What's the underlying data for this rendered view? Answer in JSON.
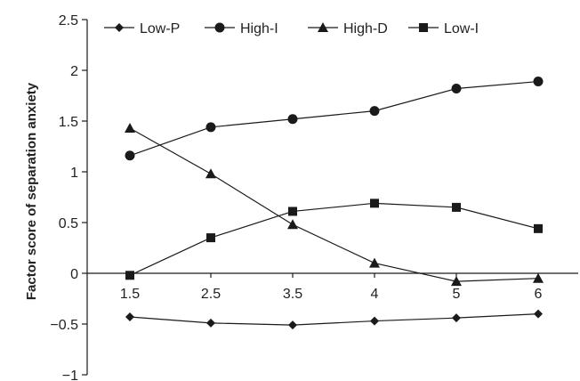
{
  "chart_data": {
    "type": "line",
    "categories": [
      "1.5",
      "2.5",
      "3.5",
      "4",
      "5",
      "6"
    ],
    "series": [
      {
        "name": "Low-P",
        "marker": "diamond",
        "values": [
          -0.43,
          -0.49,
          -0.51,
          -0.47,
          -0.44,
          -0.4
        ]
      },
      {
        "name": "High-I",
        "marker": "circle",
        "values": [
          1.16,
          1.44,
          1.52,
          1.6,
          1.82,
          1.89
        ]
      },
      {
        "name": "High-D",
        "marker": "triangle",
        "values": [
          1.43,
          0.98,
          0.48,
          0.1,
          -0.08,
          -0.05
        ]
      },
      {
        "name": "Low-I",
        "marker": "square",
        "values": [
          -0.02,
          0.35,
          0.61,
          0.69,
          0.65,
          0.44
        ]
      }
    ],
    "ylabel": "Factor score of separation anxiety",
    "ylim": [
      -1,
      2.5
    ],
    "yticks": [
      -1,
      -0.5,
      0,
      0.5,
      1,
      1.5,
      2,
      2.5
    ],
    "ytick_labels": [
      "−1",
      "−0.5",
      "0",
      "0.5",
      "1",
      "1.5",
      "2",
      "2.5"
    ],
    "grid": false,
    "legend_position": "top",
    "line_color": "#1a1a1a"
  }
}
